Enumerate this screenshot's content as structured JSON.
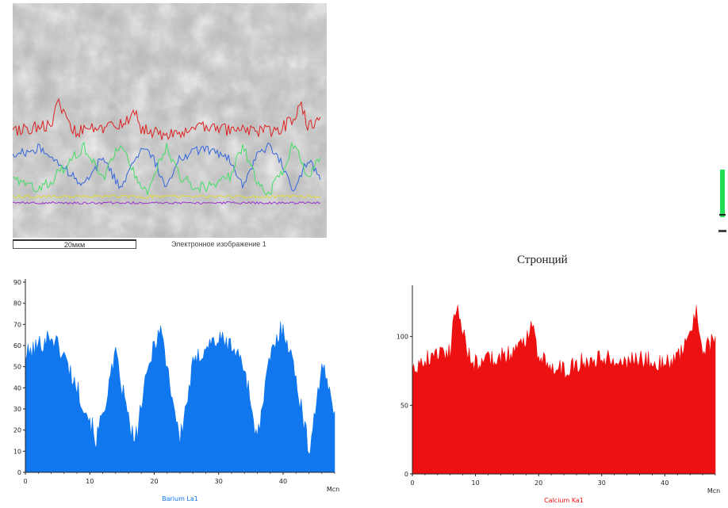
{
  "sem": {
    "scale_label": "20мкм",
    "caption": "Электронное изображение 1",
    "profiles": [
      {
        "color": "#dd2222"
      },
      {
        "color": "#3366dd"
      },
      {
        "color": "#44dd66"
      },
      {
        "color": "#dddd33"
      },
      {
        "color": "#9933cc"
      }
    ]
  },
  "strontium": {
    "title": "Стронций"
  },
  "chart_data": [
    {
      "type": "area",
      "series": [
        {
          "name": "Barium La1",
          "color": "#1177ee"
        }
      ],
      "x_unit": "Mcn",
      "xlim": [
        0,
        48
      ],
      "ylim": [
        0,
        90
      ],
      "x_ticks": [
        0,
        10,
        20,
        30,
        40
      ],
      "y_ticks": [
        0,
        10,
        20,
        30,
        40,
        50,
        60,
        70,
        80,
        90
      ],
      "x": [
        0,
        2,
        4,
        6,
        8,
        10,
        11,
        12,
        14,
        16,
        17,
        18,
        20,
        21,
        22,
        24,
        26,
        28,
        30,
        32,
        34,
        36,
        38,
        40,
        42,
        44,
        46,
        48
      ],
      "values": [
        55,
        60,
        65,
        55,
        40,
        25,
        15,
        28,
        55,
        25,
        13,
        32,
        62,
        68,
        50,
        15,
        50,
        60,
        63,
        60,
        50,
        15,
        55,
        70,
        45,
        10,
        50,
        30
      ]
    },
    {
      "type": "area",
      "series": [
        {
          "name": "Calcium Ka1",
          "color": "#ee1111"
        }
      ],
      "x_unit": "Mcn",
      "xlim": [
        0,
        48
      ],
      "ylim": [
        0,
        135
      ],
      "x_ticks": [
        0,
        10,
        20,
        30,
        40
      ],
      "y_ticks": [
        0,
        50,
        100
      ],
      "x": [
        0,
        2,
        4,
        6,
        7,
        8,
        9,
        10,
        12,
        14,
        16,
        18,
        19,
        20,
        22,
        24,
        26,
        28,
        30,
        32,
        34,
        36,
        38,
        40,
        42,
        44,
        45,
        46,
        48
      ],
      "values": [
        78,
        83,
        88,
        90,
        125,
        105,
        85,
        80,
        84,
        86,
        88,
        98,
        110,
        85,
        80,
        75,
        80,
        83,
        85,
        84,
        82,
        84,
        82,
        80,
        85,
        100,
        120,
        90,
        98
      ]
    }
  ]
}
